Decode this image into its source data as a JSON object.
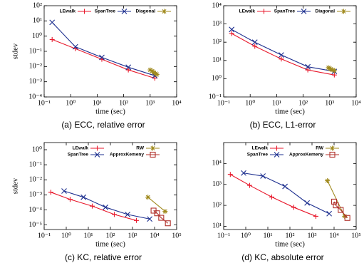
{
  "chart_data": [
    {
      "type": "line",
      "title": "(a)  ECC, relative error",
      "xlabel": "time (sec)",
      "ylabel": "stdev",
      "log_x": true,
      "log_y": true,
      "legend": "top",
      "legend_cols": 3,
      "xlim": [
        0.1,
        10000
      ],
      "xticks": [
        {
          "value": 0.1,
          "label": "10⁻¹"
        },
        {
          "value": 1,
          "label": "10⁰"
        },
        {
          "value": 10,
          "label": "10¹"
        },
        {
          "value": 100,
          "label": "10²"
        },
        {
          "value": 1000,
          "label": "10³"
        },
        {
          "value": 10000,
          "label": "10⁴"
        }
      ],
      "ylim": [
        0.0001,
        100
      ],
      "yticks": [
        {
          "value": 0.0001,
          "label": "10⁻⁴"
        },
        {
          "value": 0.001,
          "label": "10⁻³"
        },
        {
          "value": 0.01,
          "label": "10⁻²"
        },
        {
          "value": 0.1,
          "label": "10⁻¹"
        },
        {
          "value": 1,
          "label": "10⁰"
        },
        {
          "value": 10,
          "label": "10¹"
        },
        {
          "value": 100,
          "label": "10²"
        }
      ],
      "series": [
        {
          "name": "LEwalk",
          "color": "#e8192c",
          "marker": "plus",
          "x": [
            0.2,
            1.5,
            15,
            150,
            1500
          ],
          "values": [
            0.6,
            0.15,
            0.03,
            0.006,
            0.0017
          ]
        },
        {
          "name": "SpanTree",
          "color": "#1d2f8f",
          "marker": "cross",
          "x": [
            0.2,
            1.5,
            15,
            150,
            1500
          ],
          "values": [
            8,
            0.2,
            0.04,
            0.009,
            0.0025
          ]
        },
        {
          "name": "Diagonal",
          "color": "#a08a1e",
          "marker": "star",
          "x": [
            1000,
            1200,
            1400,
            1600,
            1800
          ],
          "values": [
            0.006,
            0.005,
            0.004,
            0.0035,
            0.003
          ]
        }
      ]
    },
    {
      "type": "line",
      "title": "(b)  ECC, L1-error",
      "xlabel": "time (sec)",
      "log_x": true,
      "log_y": true,
      "legend": "top",
      "legend_cols": 3,
      "xlim": [
        0.1,
        10000
      ],
      "xticks": [
        {
          "value": 0.1,
          "label": "10⁻¹"
        },
        {
          "value": 1,
          "label": "10⁰"
        },
        {
          "value": 10,
          "label": "10¹"
        },
        {
          "value": 100,
          "label": "10²"
        },
        {
          "value": 1000,
          "label": "10³"
        },
        {
          "value": 10000,
          "label": "10⁴"
        }
      ],
      "ylim": [
        0.1,
        10000
      ],
      "yticks": [
        {
          "value": 0.1,
          "label": "10⁻¹"
        },
        {
          "value": 1,
          "label": "10⁰"
        },
        {
          "value": 10,
          "label": "10¹"
        },
        {
          "value": 100,
          "label": "10²"
        },
        {
          "value": 1000,
          "label": "10³"
        },
        {
          "value": 10000,
          "label": "10⁴"
        }
      ],
      "series": [
        {
          "name": "LEwalk",
          "color": "#e8192c",
          "marker": "plus",
          "x": [
            0.2,
            1.5,
            15,
            150,
            1500
          ],
          "values": [
            300,
            60,
            12,
            3,
            1.6
          ]
        },
        {
          "name": "SpanTree",
          "color": "#1d2f8f",
          "marker": "cross",
          "x": [
            0.2,
            1.5,
            15,
            150,
            1500
          ],
          "values": [
            500,
            100,
            20,
            4.5,
            2.5
          ]
        },
        {
          "name": "Diagonal",
          "color": "#a08a1e",
          "marker": "star",
          "x": [
            900,
            1000,
            1100,
            1300,
            1500
          ],
          "values": [
            4,
            3.6,
            3.3,
            3,
            2.8
          ]
        }
      ]
    },
    {
      "type": "line",
      "title": "(c)  KC, relative error",
      "xlabel": "time (sec)",
      "ylabel": "stdev",
      "log_x": true,
      "log_y": true,
      "legend": "top",
      "legend_cols": 2,
      "xlim": [
        0.1,
        100000
      ],
      "xticks": [
        {
          "value": 0.1,
          "label": "10⁻¹"
        },
        {
          "value": 1,
          "label": "10⁰"
        },
        {
          "value": 10,
          "label": "10¹"
        },
        {
          "value": 100,
          "label": "10²"
        },
        {
          "value": 1000,
          "label": "10³"
        },
        {
          "value": 10000,
          "label": "10⁴"
        },
        {
          "value": 100000,
          "label": "10⁵"
        }
      ],
      "ylim": [
        5e-06,
        3
      ],
      "yticks": [
        {
          "value": 1e-05,
          "label": "10⁻⁵"
        },
        {
          "value": 0.0001,
          "label": "10⁻⁴"
        },
        {
          "value": 0.001,
          "label": "10⁻³"
        },
        {
          "value": 0.01,
          "label": "10⁻²"
        },
        {
          "value": 0.1,
          "label": "10⁻¹"
        },
        {
          "value": 1,
          "label": "10⁰"
        }
      ],
      "series": [
        {
          "name": "LEwalk",
          "color": "#e8192c",
          "marker": "plus",
          "x": [
            0.2,
            1.5,
            15,
            150,
            1500
          ],
          "values": [
            0.0015,
            0.0005,
            0.00018,
            5e-05,
            2e-05
          ]
        },
        {
          "name": "RW",
          "color": "#a08a1e",
          "marker": "star",
          "x": [
            5000,
            30000
          ],
          "values": [
            0.0007,
            8e-05
          ]
        },
        {
          "name": "SpanTree",
          "color": "#1d2f8f",
          "marker": "cross",
          "x": [
            0.8,
            6,
            60,
            600,
            6000
          ],
          "values": [
            0.0018,
            0.0007,
            0.00015,
            5e-05,
            2.5e-05
          ]
        },
        {
          "name": "ApproxKemeny",
          "color": "#b0302a",
          "marker": "square",
          "x": [
            9000,
            13000,
            20000,
            40000
          ],
          "values": [
            9e-05,
            6e-05,
            3e-05,
            1.3e-05
          ]
        }
      ]
    },
    {
      "type": "line",
      "title": "(d)  KC, absolute error",
      "xlabel": "time (sec)",
      "log_x": true,
      "log_y": true,
      "legend": "top",
      "legend_cols": 2,
      "xlim": [
        0.1,
        100000
      ],
      "xticks": [
        {
          "value": 0.1,
          "label": "10⁻¹"
        },
        {
          "value": 1,
          "label": "10⁰"
        },
        {
          "value": 10,
          "label": "10¹"
        },
        {
          "value": 100,
          "label": "10²"
        },
        {
          "value": 1000,
          "label": "10³"
        },
        {
          "value": 10000,
          "label": "10⁴"
        },
        {
          "value": 100000,
          "label": "10⁵"
        }
      ],
      "ylim": [
        7,
        100000
      ],
      "yticks": [
        {
          "value": 10,
          "label": "10¹"
        },
        {
          "value": 100,
          "label": "10²"
        },
        {
          "value": 1000,
          "label": "10³"
        },
        {
          "value": 10000,
          "label": "10⁴"
        }
      ],
      "series": [
        {
          "name": "LEwalk",
          "color": "#e8192c",
          "marker": "plus",
          "x": [
            0.2,
            1.5,
            15,
            150,
            1500
          ],
          "values": [
            3000,
            900,
            250,
            80,
            30
          ]
        },
        {
          "name": "RW",
          "color": "#a08a1e",
          "marker": "star",
          "x": [
            5000,
            30000
          ],
          "values": [
            1500,
            30
          ]
        },
        {
          "name": "SpanTree",
          "color": "#1d2f8f",
          "marker": "cross",
          "x": [
            0.8,
            6,
            60,
            600,
            6000
          ],
          "values": [
            3500,
            2500,
            800,
            130,
            40
          ]
        },
        {
          "name": "ApproxKemeny",
          "color": "#b0302a",
          "marker": "square",
          "x": [
            10000,
            12000,
            20000,
            40000
          ],
          "values": [
            150,
            100,
            60,
            25
          ]
        }
      ]
    }
  ]
}
